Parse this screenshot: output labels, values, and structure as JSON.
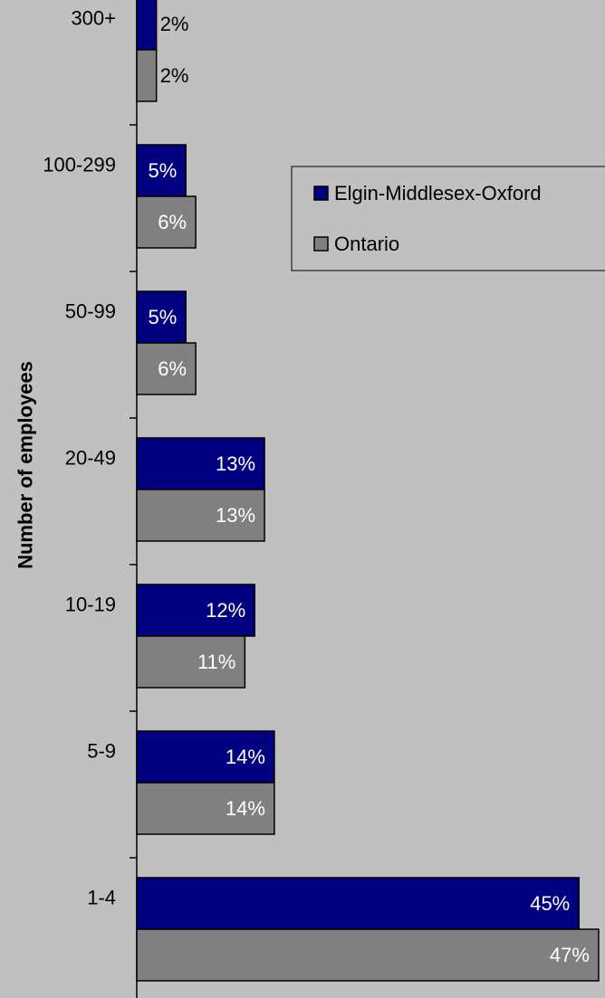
{
  "chart_data": {
    "type": "bar",
    "orientation": "horizontal",
    "ylabel": "Number of employees",
    "xlabel": "",
    "categories": [
      "300+",
      "100-299",
      "50-99",
      "20-49",
      "10-19",
      "5-9",
      "1-4"
    ],
    "series": [
      {
        "name": "Elgin-Middlesex-Oxford",
        "color": "#000080",
        "values": [
          2,
          5,
          5,
          13,
          12,
          14,
          45
        ],
        "labels": [
          "2%",
          "5%",
          "5%",
          "13%",
          "12%",
          "14%",
          "45%"
        ]
      },
      {
        "name": "Ontario",
        "color": "#808080",
        "values": [
          2,
          6,
          6,
          13,
          11,
          14,
          47
        ],
        "labels": [
          "2%",
          "6%",
          "6%",
          "13%",
          "11%",
          "14%",
          "47%"
        ]
      }
    ],
    "legend": "top-right",
    "grid": false
  }
}
